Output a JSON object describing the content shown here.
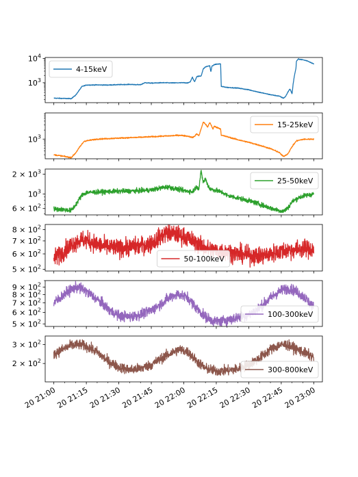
{
  "chart_data": {
    "type": "line",
    "x_axis": {
      "kind": "datetime",
      "range": [
        "20 21:00",
        "20 23:00"
      ],
      "ticks": [
        {
          "t": 0,
          "label": "20 21:00"
        },
        {
          "t": 15,
          "label": "20 21:15"
        },
        {
          "t": 30,
          "label": "20 21:30"
        },
        {
          "t": 45,
          "label": "20 21:45"
        },
        {
          "t": 60,
          "label": "20 22:00"
        },
        {
          "t": 75,
          "label": "20 22:15"
        },
        {
          "t": 90,
          "label": "20 22:30"
        },
        {
          "t": 105,
          "label": "20 22:45"
        },
        {
          "t": 120,
          "label": "20 23:00"
        }
      ],
      "label_rotation": 30
    },
    "series": [
      {
        "name": "4-15keV",
        "color": "#1f77b4",
        "scale": "log",
        "ylim": [
          150,
          11000
        ],
        "ticks": [
          {
            "v": 1000,
            "base": "10",
            "exp": "3"
          },
          {
            "v": 10000,
            "base": "10",
            "exp": "4"
          }
        ],
        "legend_position": "upper left",
        "noise": 0.015,
        "spikes": 0,
        "points": [
          [
            0,
            230
          ],
          [
            4,
            225
          ],
          [
            8,
            220
          ],
          [
            10,
            300
          ],
          [
            13,
            700
          ],
          [
            15,
            800
          ],
          [
            20,
            810
          ],
          [
            25,
            800
          ],
          [
            30,
            830
          ],
          [
            35,
            850
          ],
          [
            40,
            820
          ],
          [
            42,
            1000
          ],
          [
            45,
            960
          ],
          [
            50,
            1000
          ],
          [
            55,
            980
          ],
          [
            60,
            1000
          ],
          [
            62,
            980
          ],
          [
            63,
            1100
          ],
          [
            64,
            1700
          ],
          [
            64.5,
            1300
          ],
          [
            65,
            1100
          ],
          [
            66,
            1800
          ],
          [
            68,
            1900
          ],
          [
            69,
            3700
          ],
          [
            70,
            4500
          ],
          [
            71,
            4800
          ],
          [
            72,
            5000
          ],
          [
            72.5,
            2800
          ],
          [
            73,
            4800
          ],
          [
            74,
            5500
          ],
          [
            75,
            5800
          ],
          [
            77,
            6000
          ],
          [
            77.3,
            700
          ],
          [
            80,
            640
          ],
          [
            85,
            600
          ],
          [
            90,
            510
          ],
          [
            95,
            400
          ],
          [
            100,
            320
          ],
          [
            104,
            280
          ],
          [
            106,
            230
          ],
          [
            107,
            270
          ],
          [
            108,
            400
          ],
          [
            109,
            560
          ],
          [
            110,
            350
          ],
          [
            110.5,
            900
          ],
          [
            111,
            1800
          ],
          [
            111.8,
            4000
          ],
          [
            112,
            7800
          ],
          [
            113,
            9500
          ],
          [
            115,
            8800
          ],
          [
            117,
            8000
          ],
          [
            120,
            6000
          ]
        ]
      },
      {
        "name": "15-25keV",
        "color": "#ff7f0e",
        "scale": "log",
        "ylim": [
          220,
          7500
        ],
        "ticks": [
          {
            "v": 1000,
            "base": "10",
            "exp": "3"
          }
        ],
        "legend_position": "upper right",
        "noise": 0.02,
        "spikes": 0,
        "points": [
          [
            0,
            300
          ],
          [
            4,
            270
          ],
          [
            8,
            240
          ],
          [
            10,
            340
          ],
          [
            12,
            550
          ],
          [
            14,
            850
          ],
          [
            20,
            1000
          ],
          [
            30,
            1080
          ],
          [
            40,
            1150
          ],
          [
            50,
            1250
          ],
          [
            55,
            1300
          ],
          [
            58,
            1350
          ],
          [
            62,
            1250
          ],
          [
            64,
            1130
          ],
          [
            65,
            1250
          ],
          [
            66,
            1500
          ],
          [
            67,
            1300
          ],
          [
            68,
            2200
          ],
          [
            69,
            3700
          ],
          [
            70,
            3200
          ],
          [
            71,
            2500
          ],
          [
            72,
            3600
          ],
          [
            73,
            2600
          ],
          [
            73.5,
            2100
          ],
          [
            74,
            2700
          ],
          [
            75,
            2500
          ],
          [
            77,
            2200
          ],
          [
            77.3,
            1350
          ],
          [
            80,
            1200
          ],
          [
            85,
            950
          ],
          [
            90,
            780
          ],
          [
            95,
            620
          ],
          [
            100,
            480
          ],
          [
            104,
            360
          ],
          [
            106,
            260
          ],
          [
            108,
            320
          ],
          [
            110,
            560
          ],
          [
            112,
            870
          ],
          [
            115,
            980
          ],
          [
            120,
            1000
          ]
        ]
      },
      {
        "name": "25-50keV",
        "color": "#2ca02c",
        "scale": "log",
        "ylim": [
          480,
          2400
        ],
        "ticks": [
          {
            "v": 600,
            "base": "6 × 10",
            "exp": "2"
          },
          {
            "v": 1000,
            "base": "10",
            "exp": "3"
          },
          {
            "v": 2000,
            "base": "2 × 10",
            "exp": "3"
          }
        ],
        "legend_position": "upper right",
        "noise": 0.035,
        "spikes": 0,
        "points": [
          [
            0,
            590
          ],
          [
            4,
            580
          ],
          [
            8,
            560
          ],
          [
            10,
            680
          ],
          [
            13,
            960
          ],
          [
            15,
            1050
          ],
          [
            20,
            1070
          ],
          [
            30,
            1100
          ],
          [
            40,
            1120
          ],
          [
            45,
            1150
          ],
          [
            50,
            1250
          ],
          [
            53,
            1280
          ],
          [
            55,
            1220
          ],
          [
            60,
            1130
          ],
          [
            64,
            1080
          ],
          [
            66,
            1300
          ],
          [
            67,
            1200
          ],
          [
            67.5,
            1700
          ],
          [
            68,
            2200
          ],
          [
            69,
            1500
          ],
          [
            70,
            1700
          ],
          [
            71,
            1400
          ],
          [
            72,
            1200
          ],
          [
            75,
            1130
          ],
          [
            78,
            1050
          ],
          [
            80,
            950
          ],
          [
            85,
            870
          ],
          [
            90,
            790
          ],
          [
            95,
            700
          ],
          [
            100,
            610
          ],
          [
            104,
            560
          ],
          [
            106,
            545
          ],
          [
            108,
            610
          ],
          [
            110,
            760
          ],
          [
            113,
            880
          ],
          [
            116,
            950
          ],
          [
            120,
            1000
          ]
        ]
      },
      {
        "name": "50-100keV",
        "color": "#d62728",
        "scale": "log",
        "ylim": [
          490,
          850
        ],
        "ticks": [
          {
            "v": 500,
            "base": "5 × 10",
            "exp": "2"
          },
          {
            "v": 600,
            "base": "6 × 10",
            "exp": "2"
          },
          {
            "v": 700,
            "base": "7 × 10",
            "exp": "2"
          },
          {
            "v": 800,
            "base": "8 × 10",
            "exp": "2"
          }
        ],
        "legend_position": "lower center",
        "noise": 0.045,
        "spikes": 0,
        "points": [
          [
            0,
            570
          ],
          [
            3,
            600
          ],
          [
            6,
            640
          ],
          [
            10,
            690
          ],
          [
            13,
            710
          ],
          [
            16,
            700
          ],
          [
            20,
            670
          ],
          [
            25,
            650
          ],
          [
            30,
            640
          ],
          [
            35,
            650
          ],
          [
            40,
            660
          ],
          [
            45,
            680
          ],
          [
            48,
            720
          ],
          [
            52,
            770
          ],
          [
            55,
            760
          ],
          [
            60,
            740
          ],
          [
            64,
            700
          ],
          [
            68,
            660
          ],
          [
            72,
            630
          ],
          [
            76,
            620
          ],
          [
            80,
            615
          ],
          [
            85,
            600
          ],
          [
            90,
            590
          ],
          [
            95,
            585
          ],
          [
            100,
            600
          ],
          [
            105,
            620
          ],
          [
            110,
            630
          ],
          [
            115,
            640
          ],
          [
            120,
            630
          ]
        ]
      },
      {
        "name": "100-300keV",
        "color": "#9467bd",
        "scale": "log",
        "ylim": [
          480,
          1000
        ],
        "ticks": [
          {
            "v": 500,
            "base": "5 × 10",
            "exp": "2"
          },
          {
            "v": 600,
            "base": "6 × 10",
            "exp": "2"
          },
          {
            "v": 700,
            "base": "7 × 10",
            "exp": "2"
          },
          {
            "v": 800,
            "base": "8 × 10",
            "exp": "2"
          },
          {
            "v": 900,
            "base": "9 × 10",
            "exp": "2"
          }
        ],
        "legend_position": "lower right",
        "noise": 0.035,
        "spikes": 0,
        "points": [
          [
            0,
            700
          ],
          [
            3,
            760
          ],
          [
            6,
            830
          ],
          [
            9,
            880
          ],
          [
            11,
            900
          ],
          [
            14,
            860
          ],
          [
            18,
            780
          ],
          [
            22,
            700
          ],
          [
            26,
            620
          ],
          [
            30,
            570
          ],
          [
            35,
            560
          ],
          [
            40,
            580
          ],
          [
            45,
            620
          ],
          [
            50,
            700
          ],
          [
            55,
            790
          ],
          [
            58,
            800
          ],
          [
            62,
            760
          ],
          [
            66,
            640
          ],
          [
            70,
            560
          ],
          [
            74,
            520
          ],
          [
            78,
            525
          ],
          [
            82,
            540
          ],
          [
            86,
            560
          ],
          [
            90,
            580
          ],
          [
            94,
            630
          ],
          [
            98,
            710
          ],
          [
            102,
            800
          ],
          [
            106,
            870
          ],
          [
            109,
            880
          ],
          [
            112,
            840
          ],
          [
            116,
            760
          ],
          [
            120,
            650
          ]
        ]
      },
      {
        "name": "300-800keV",
        "color": "#8c564b",
        "scale": "log",
        "ylim": [
          135,
          360
        ],
        "ticks": [
          {
            "v": 200,
            "base": "2 × 10",
            "exp": "2"
          },
          {
            "v": 300,
            "base": "3 × 10",
            "exp": "2"
          }
        ],
        "legend_position": "lower right",
        "noise": 0.045,
        "spikes": 0,
        "points": [
          [
            0,
            245
          ],
          [
            4,
            270
          ],
          [
            8,
            295
          ],
          [
            12,
            300
          ],
          [
            15,
            290
          ],
          [
            20,
            255
          ],
          [
            25,
            210
          ],
          [
            30,
            185
          ],
          [
            35,
            175
          ],
          [
            40,
            180
          ],
          [
            45,
            195
          ],
          [
            50,
            225
          ],
          [
            55,
            255
          ],
          [
            58,
            270
          ],
          [
            62,
            255
          ],
          [
            66,
            210
          ],
          [
            70,
            180
          ],
          [
            75,
            170
          ],
          [
            80,
            172
          ],
          [
            85,
            178
          ],
          [
            90,
            195
          ],
          [
            95,
            225
          ],
          [
            100,
            270
          ],
          [
            104,
            295
          ],
          [
            107,
            300
          ],
          [
            110,
            285
          ],
          [
            115,
            255
          ],
          [
            120,
            230
          ]
        ]
      }
    ]
  }
}
